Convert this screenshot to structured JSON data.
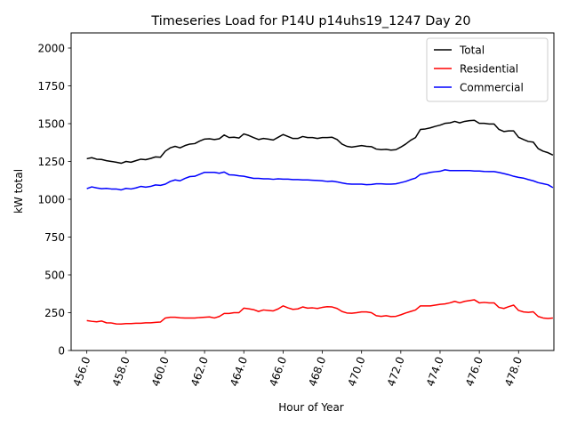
{
  "chart_data": {
    "type": "line",
    "title": "Timeseries Load for P14U p14uhs19_1247  Day 20",
    "xlabel": "Hour of Year",
    "ylabel": "kW total",
    "xlim": [
      455.2,
      479.8
    ],
    "ylim": [
      0,
      2100
    ],
    "x_ticks": [
      456,
      458,
      460,
      462,
      464,
      466,
      468,
      470,
      472,
      474,
      476,
      478
    ],
    "x_tick_labels": [
      "456.0",
      "458.0",
      "460.0",
      "462.0",
      "464.0",
      "466.0",
      "468.0",
      "470.0",
      "472.0",
      "474.0",
      "476.0",
      "478.0"
    ],
    "y_ticks": [
      0,
      250,
      500,
      750,
      1000,
      1250,
      1500,
      1750,
      2000
    ],
    "y_tick_labels": [
      "0",
      "250",
      "500",
      "750",
      "1000",
      "1250",
      "1500",
      "1750",
      "2000"
    ],
    "legend_position": "top-right",
    "series": [
      {
        "name": "Total",
        "color": "#000000",
        "x": [
          456.0,
          456.25,
          456.5,
          456.75,
          457.0,
          457.25,
          457.5,
          457.75,
          458.0,
          458.25,
          458.5,
          458.75,
          459.0,
          459.25,
          459.5,
          459.75,
          460.0,
          460.25,
          460.5,
          460.75,
          461.0,
          461.25,
          461.5,
          461.75,
          462.0,
          462.25,
          462.5,
          462.75,
          463.0,
          463.25,
          463.5,
          463.75,
          464.0,
          464.25,
          464.5,
          464.75,
          465.0,
          465.25,
          465.5,
          465.75,
          466.0,
          466.25,
          466.5,
          466.75,
          467.0,
          467.25,
          467.5,
          467.75,
          468.0,
          468.25,
          468.5,
          468.75,
          469.0,
          469.25,
          469.5,
          469.75,
          470.0,
          470.25,
          470.5,
          470.75,
          471.0,
          471.25,
          471.5,
          471.75,
          472.0,
          472.25,
          472.5,
          472.75,
          473.0,
          473.25,
          473.5,
          473.75,
          474.0,
          474.25,
          474.5,
          474.75,
          475.0,
          475.25,
          475.5,
          475.75,
          476.0,
          476.25,
          476.5,
          476.75,
          477.0,
          477.25,
          477.5,
          477.75,
          478.0,
          478.25,
          478.5,
          478.75,
          479.0,
          479.25,
          479.5,
          479.75
        ],
        "values": [
          1268,
          1275,
          1265,
          1263,
          1255,
          1250,
          1245,
          1238,
          1250,
          1245,
          1255,
          1265,
          1262,
          1270,
          1280,
          1278,
          1318,
          1340,
          1350,
          1340,
          1355,
          1365,
          1368,
          1385,
          1398,
          1400,
          1395,
          1400,
          1425,
          1408,
          1410,
          1405,
          1432,
          1422,
          1408,
          1395,
          1402,
          1398,
          1392,
          1410,
          1428,
          1415,
          1402,
          1402,
          1415,
          1408,
          1408,
          1402,
          1408,
          1408,
          1410,
          1395,
          1365,
          1350,
          1345,
          1350,
          1355,
          1350,
          1348,
          1332,
          1328,
          1330,
          1325,
          1328,
          1345,
          1365,
          1390,
          1408,
          1462,
          1465,
          1472,
          1482,
          1490,
          1502,
          1505,
          1515,
          1505,
          1515,
          1520,
          1522,
          1502,
          1502,
          1498,
          1498,
          1462,
          1448,
          1452,
          1452,
          1410,
          1395,
          1382,
          1378,
          1335,
          1318,
          1308,
          1292
        ]
      },
      {
        "name": "Residential",
        "color": "#ff0000",
        "x": [
          456.0,
          456.25,
          456.5,
          456.75,
          457.0,
          457.25,
          457.5,
          457.75,
          458.0,
          458.25,
          458.5,
          458.75,
          459.0,
          459.25,
          459.5,
          459.75,
          460.0,
          460.25,
          460.5,
          460.75,
          461.0,
          461.25,
          461.5,
          461.75,
          462.0,
          462.25,
          462.5,
          462.75,
          463.0,
          463.25,
          463.5,
          463.75,
          464.0,
          464.25,
          464.5,
          464.75,
          465.0,
          465.25,
          465.5,
          465.75,
          466.0,
          466.25,
          466.5,
          466.75,
          467.0,
          467.25,
          467.5,
          467.75,
          468.0,
          468.25,
          468.5,
          468.75,
          469.0,
          469.25,
          469.5,
          469.75,
          470.0,
          470.25,
          470.5,
          470.75,
          471.0,
          471.25,
          471.5,
          471.75,
          472.0,
          472.25,
          472.5,
          472.75,
          473.0,
          473.25,
          473.5,
          473.75,
          474.0,
          474.25,
          474.5,
          474.75,
          475.0,
          475.25,
          475.5,
          475.75,
          476.0,
          476.25,
          476.5,
          476.75,
          477.0,
          477.25,
          477.5,
          477.75,
          478.0,
          478.25,
          478.5,
          478.75,
          479.0,
          479.25,
          479.5,
          479.75
        ],
        "values": [
          198,
          193,
          190,
          195,
          183,
          182,
          176,
          175,
          178,
          178,
          180,
          180,
          183,
          183,
          186,
          188,
          215,
          220,
          220,
          216,
          215,
          215,
          215,
          218,
          220,
          222,
          215,
          225,
          245,
          245,
          250,
          250,
          280,
          276,
          270,
          258,
          268,
          265,
          262,
          275,
          295,
          282,
          272,
          275,
          288,
          280,
          282,
          278,
          285,
          290,
          288,
          278,
          258,
          248,
          246,
          250,
          255,
          255,
          250,
          230,
          226,
          230,
          224,
          226,
          236,
          248,
          258,
          268,
          295,
          295,
          295,
          300,
          305,
          308,
          315,
          325,
          315,
          325,
          330,
          335,
          315,
          318,
          315,
          315,
          285,
          278,
          290,
          300,
          265,
          255,
          252,
          256,
          225,
          215,
          212,
          215
        ]
      },
      {
        "name": "Commercial",
        "color": "#0000ff",
        "x": [
          456.0,
          456.25,
          456.5,
          456.75,
          457.0,
          457.25,
          457.5,
          457.75,
          458.0,
          458.25,
          458.5,
          458.75,
          459.0,
          459.25,
          459.5,
          459.75,
          460.0,
          460.25,
          460.5,
          460.75,
          461.0,
          461.25,
          461.5,
          461.75,
          462.0,
          462.25,
          462.5,
          462.75,
          463.0,
          463.25,
          463.5,
          463.75,
          464.0,
          464.25,
          464.5,
          464.75,
          465.0,
          465.25,
          465.5,
          465.75,
          466.0,
          466.25,
          466.5,
          466.75,
          467.0,
          467.25,
          467.5,
          467.75,
          468.0,
          468.25,
          468.5,
          468.75,
          469.0,
          469.25,
          469.5,
          469.75,
          470.0,
          470.25,
          470.5,
          470.75,
          471.0,
          471.25,
          471.5,
          471.75,
          472.0,
          472.25,
          472.5,
          472.75,
          473.0,
          473.25,
          473.5,
          473.75,
          474.0,
          474.25,
          474.5,
          474.75,
          475.0,
          475.25,
          475.5,
          475.75,
          476.0,
          476.25,
          476.5,
          476.75,
          477.0,
          477.25,
          477.5,
          477.75,
          478.0,
          478.25,
          478.5,
          478.75,
          479.0,
          479.25,
          479.5,
          479.75
        ],
        "values": [
          1070,
          1082,
          1075,
          1070,
          1072,
          1068,
          1068,
          1062,
          1072,
          1068,
          1075,
          1085,
          1080,
          1085,
          1095,
          1092,
          1100,
          1118,
          1128,
          1122,
          1138,
          1150,
          1152,
          1165,
          1178,
          1178,
          1178,
          1172,
          1180,
          1162,
          1160,
          1155,
          1152,
          1145,
          1138,
          1138,
          1135,
          1135,
          1132,
          1135,
          1133,
          1133,
          1130,
          1130,
          1128,
          1128,
          1126,
          1124,
          1122,
          1118,
          1120,
          1115,
          1108,
          1102,
          1100,
          1100,
          1100,
          1096,
          1098,
          1102,
          1102,
          1100,
          1100,
          1102,
          1110,
          1118,
          1130,
          1140,
          1165,
          1170,
          1178,
          1182,
          1185,
          1195,
          1190,
          1190,
          1190,
          1190,
          1190,
          1187,
          1187,
          1184,
          1183,
          1183,
          1177,
          1170,
          1162,
          1152,
          1145,
          1140,
          1130,
          1122,
          1110,
          1103,
          1096,
          1077
        ]
      }
    ]
  }
}
